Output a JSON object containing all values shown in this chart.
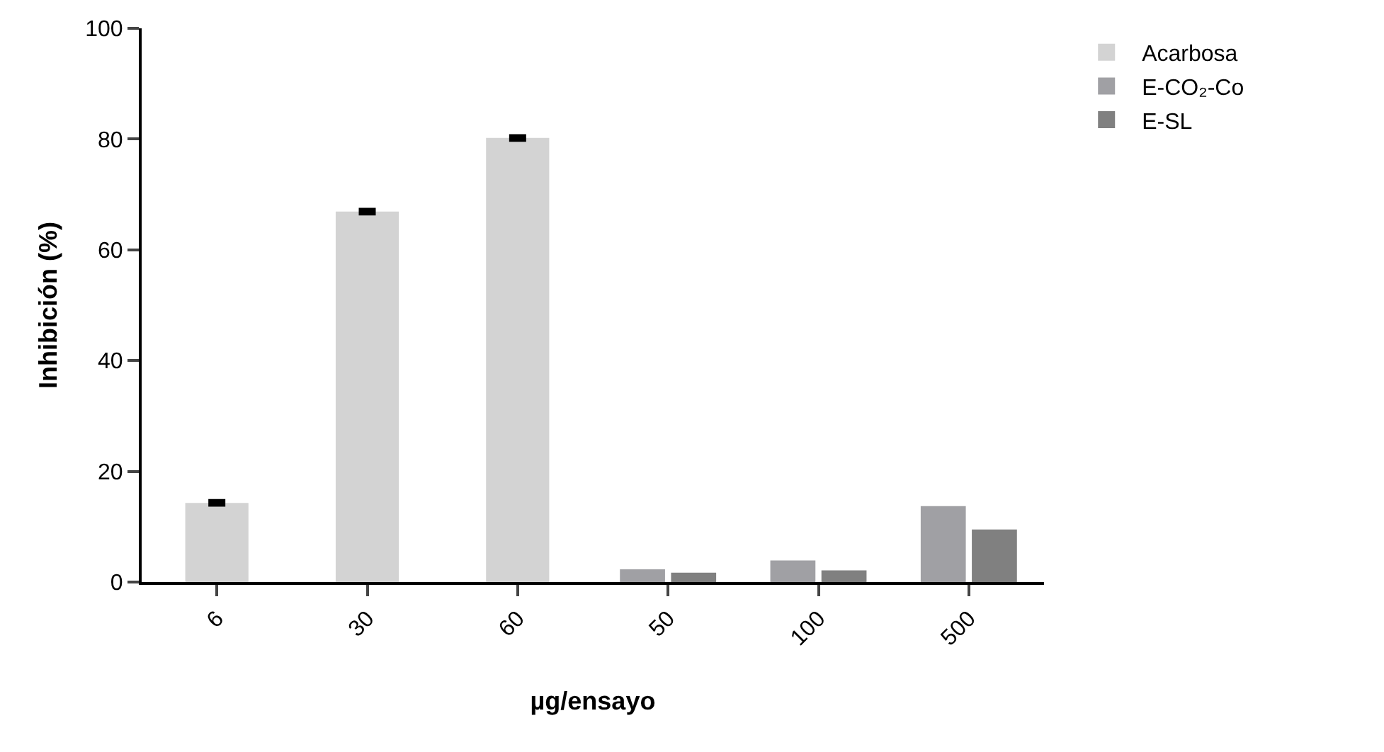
{
  "chart_data": {
    "type": "bar",
    "xlabel": "µg/ensayo",
    "ylabel": "Inhibición (%)",
    "categories": [
      "6",
      "30",
      "60",
      "50",
      "100",
      "500"
    ],
    "series": [
      {
        "name": "Acarbosa",
        "color": "#d3d3d3",
        "values": [
          14.3,
          66.9,
          80.2,
          null,
          null,
          null
        ],
        "errors": [
          0.3,
          0.3,
          0.3,
          null,
          null,
          null
        ]
      },
      {
        "name": "E-CO₂-Co",
        "color": "#a0a0a4",
        "values": [
          null,
          null,
          null,
          2.3,
          3.9,
          13.7
        ]
      },
      {
        "name": "E-SL",
        "color": "#808080",
        "values": [
          null,
          null,
          null,
          1.7,
          2.1,
          9.5
        ]
      }
    ],
    "ylim": [
      0,
      100
    ],
    "yticks": [
      0,
      20,
      40,
      60,
      80,
      100
    ],
    "legend": "top right"
  }
}
